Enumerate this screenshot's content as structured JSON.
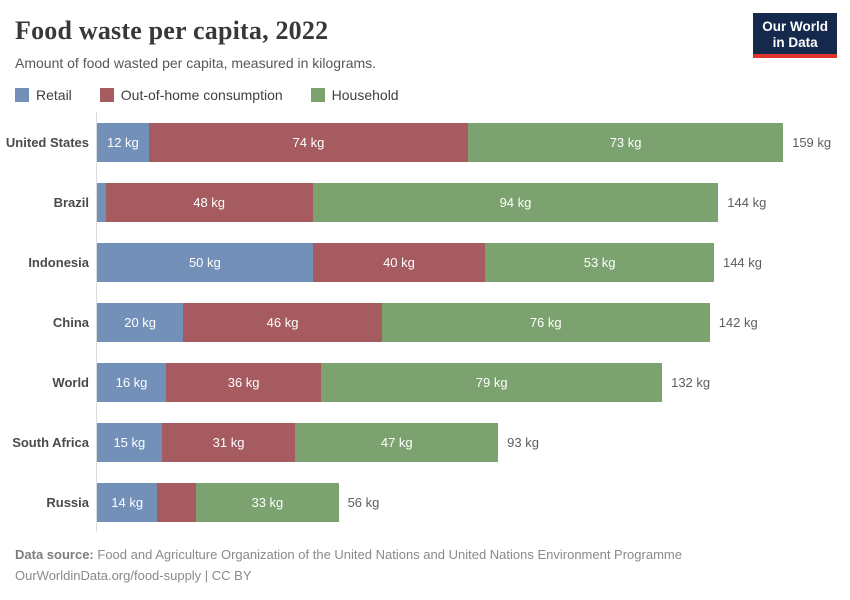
{
  "logo": {
    "line1": "Our World",
    "line2": "in Data"
  },
  "footer": {
    "source_label": "Data source:",
    "source_text": "Food and Agriculture Organization of the United Nations and United Nations Environment Programme",
    "line2": "OurWorldinData.org/food-supply | CC BY"
  },
  "chart_data": {
    "type": "bar",
    "orientation": "horizontal",
    "stacked": true,
    "title": "Food waste per capita, 2022",
    "subtitle": "Amount of food wasted per capita, measured in kilograms.",
    "unit": "kg",
    "legend_position": "top",
    "grid": false,
    "xlim": [
      0,
      159
    ],
    "categories": [
      "United States",
      "Brazil",
      "Indonesia",
      "China",
      "World",
      "South Africa",
      "Russia"
    ],
    "series": [
      {
        "name": "Retail",
        "color": "#7290b8",
        "values": [
          12,
          2,
          50,
          20,
          16,
          15,
          14
        ],
        "labels": [
          "12 kg",
          "",
          "50 kg",
          "20 kg",
          "16 kg",
          "15 kg",
          "14 kg"
        ]
      },
      {
        "name": "Out-of-home consumption",
        "color": "#a55b60",
        "values": [
          74,
          48,
          40,
          46,
          36,
          31,
          9
        ],
        "labels": [
          "74 kg",
          "48 kg",
          "40 kg",
          "46 kg",
          "36 kg",
          "31 kg",
          ""
        ]
      },
      {
        "name": "Household",
        "color": "#7ba26f",
        "values": [
          73,
          94,
          53,
          76,
          79,
          47,
          33
        ],
        "labels": [
          "73 kg",
          "94 kg",
          "53 kg",
          "76 kg",
          "79 kg",
          "47 kg",
          "33 kg"
        ]
      }
    ],
    "totals": [
      159,
      144,
      144,
      142,
      132,
      93,
      56
    ],
    "total_labels": [
      "159 kg",
      "144 kg",
      "144 kg",
      "142 kg",
      "132 kg",
      "93 kg",
      "56 kg"
    ]
  }
}
